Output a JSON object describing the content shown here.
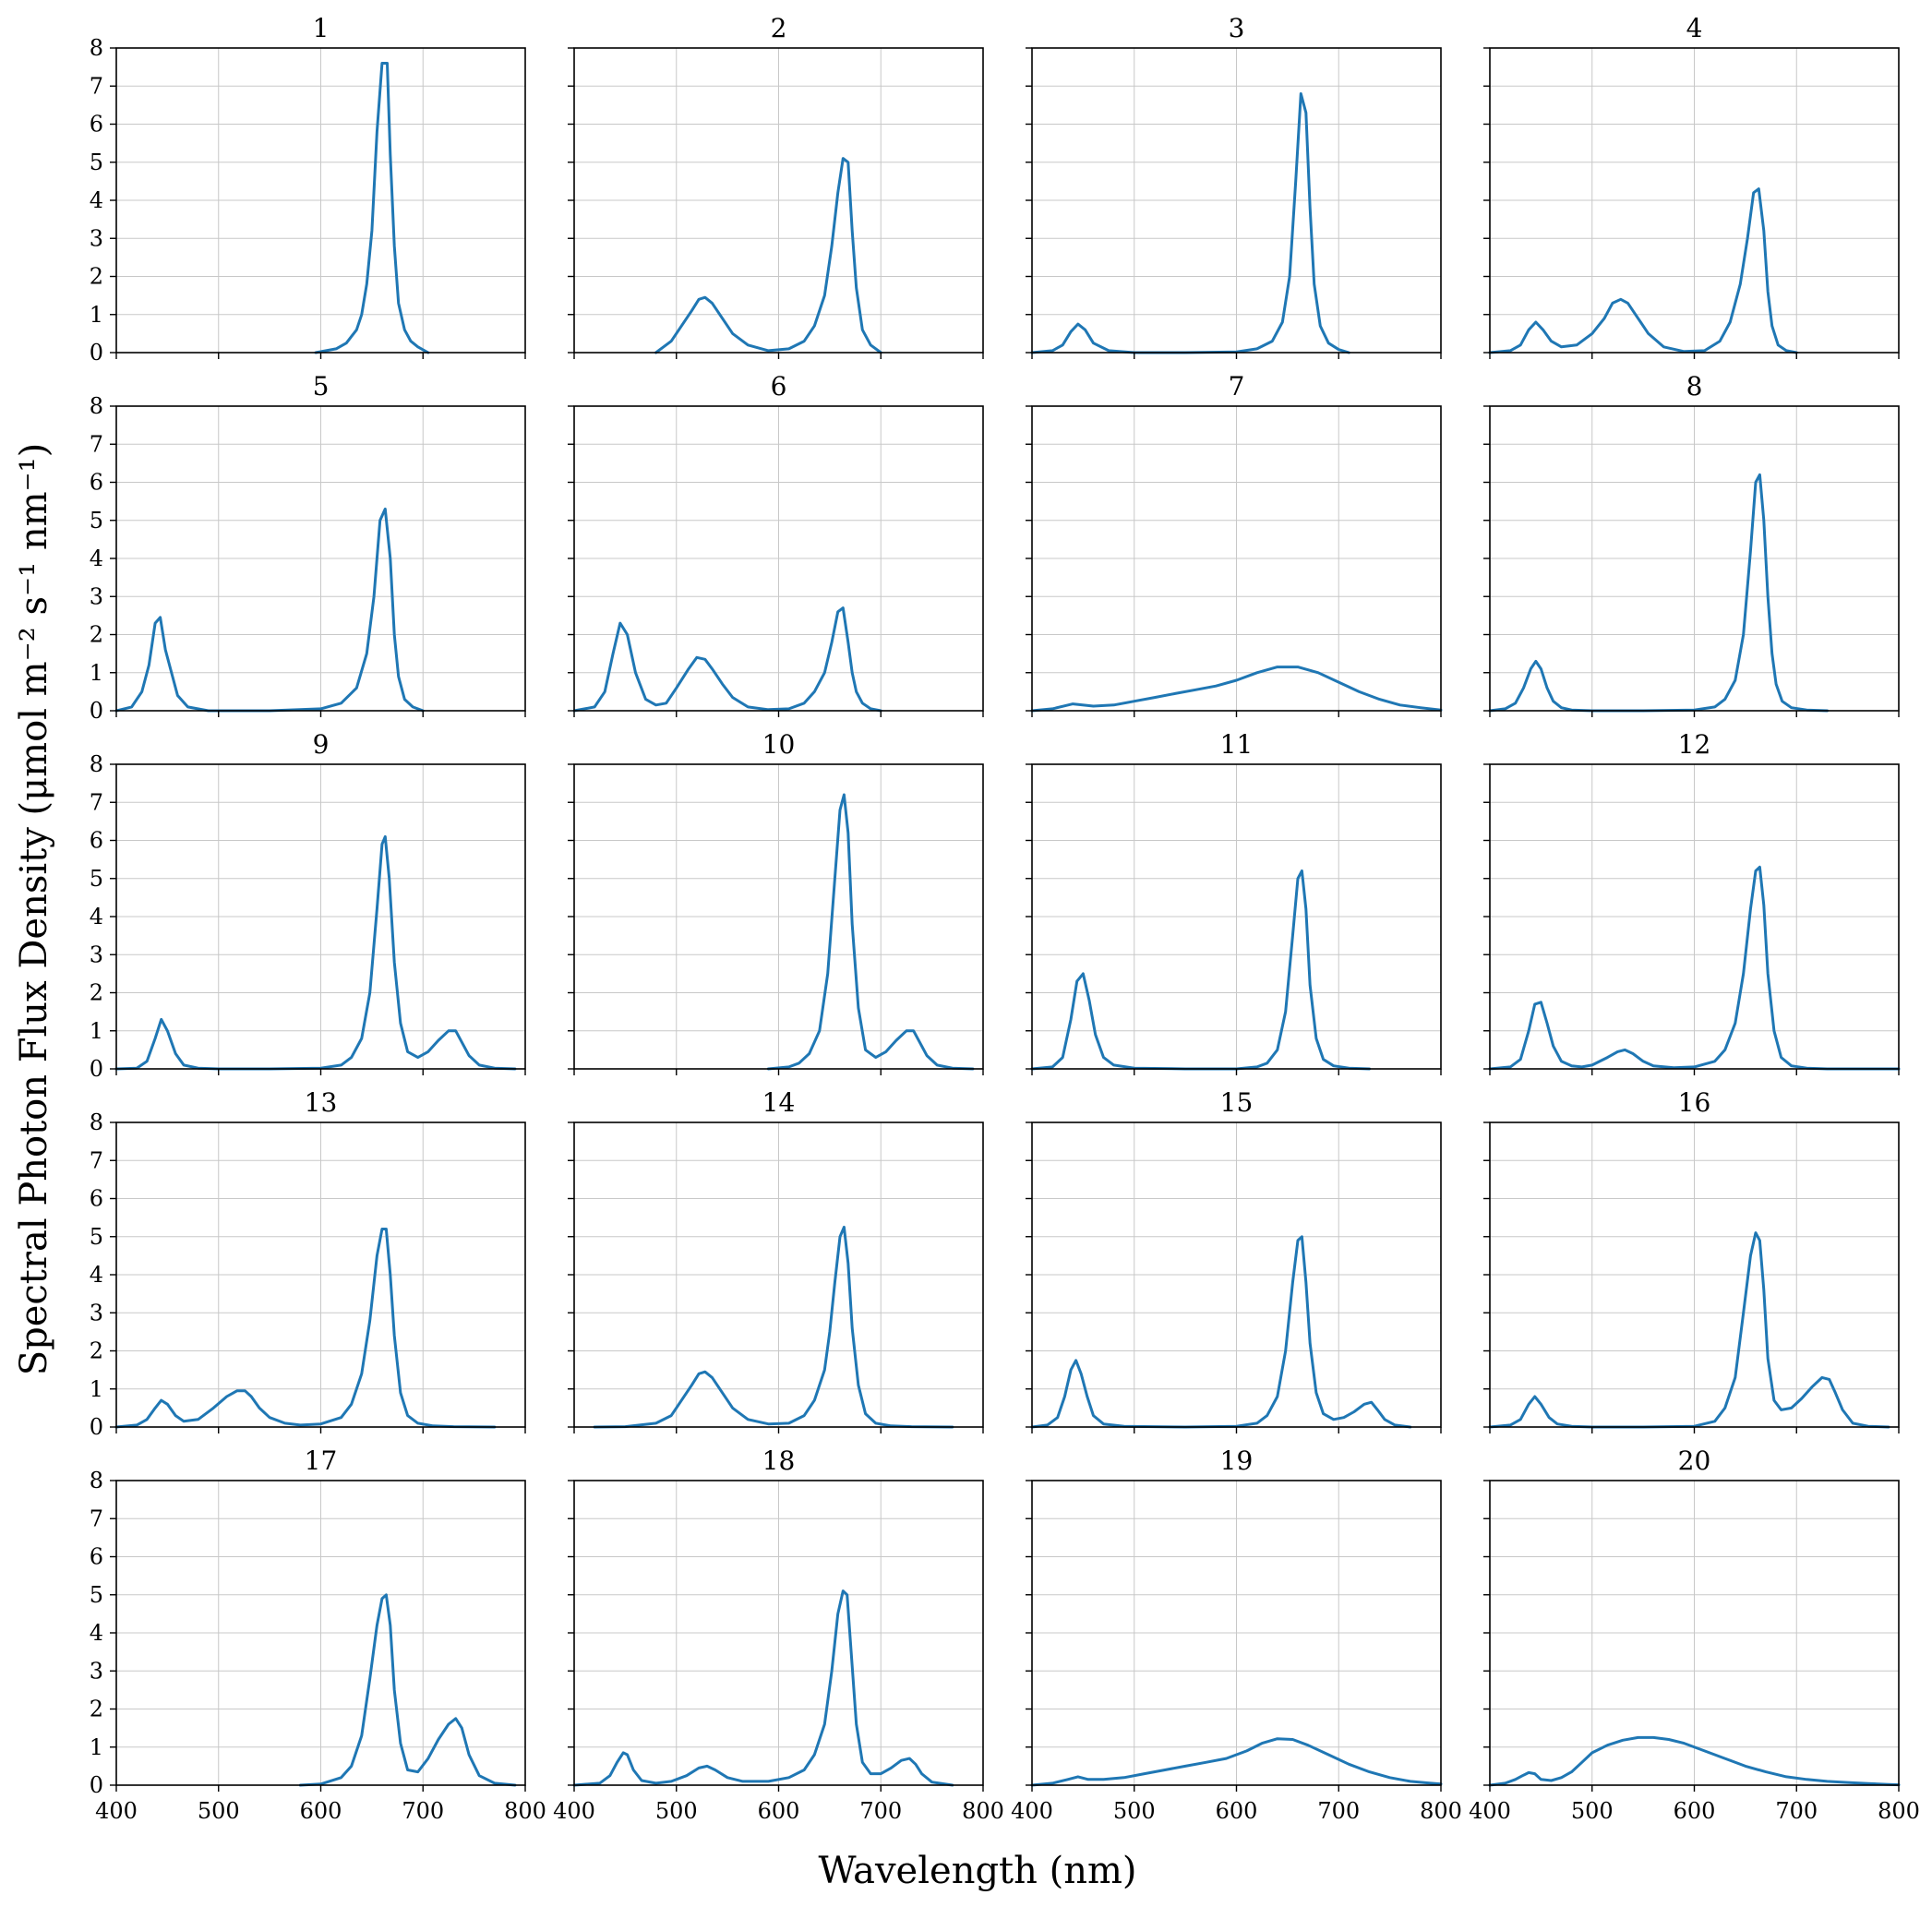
{
  "figure": {
    "xlabel": "Wavelength (nm)",
    "ylabel": "Spectral Photon Flux Density (μmol m⁻² s⁻¹ nm⁻¹)"
  },
  "style": {
    "line_color": "#1f77b4",
    "grid_color": "#c8c8c8",
    "frame_color": "#000000"
  },
  "chart_data": [
    {
      "type": "line",
      "title": "1",
      "xlim": [
        400,
        800
      ],
      "ylim": [
        0,
        8
      ],
      "x": [
        595,
        615,
        625,
        635,
        640,
        645,
        650,
        655,
        660,
        665,
        668,
        672,
        676,
        682,
        688,
        695,
        705
      ],
      "y": [
        0,
        0.1,
        0.25,
        0.6,
        1.0,
        1.8,
        3.2,
        5.8,
        7.6,
        7.6,
        5.2,
        2.8,
        1.3,
        0.6,
        0.3,
        0.15,
        0
      ]
    },
    {
      "type": "line",
      "title": "2",
      "xlim": [
        400,
        800
      ],
      "ylim": [
        0,
        8
      ],
      "x": [
        480,
        495,
        505,
        515,
        522,
        528,
        535,
        545,
        555,
        570,
        590,
        610,
        625,
        635,
        645,
        652,
        658,
        663,
        668,
        672,
        676,
        682,
        690,
        700
      ],
      "y": [
        0,
        0.3,
        0.7,
        1.1,
        1.4,
        1.45,
        1.3,
        0.9,
        0.5,
        0.2,
        0.05,
        0.1,
        0.3,
        0.7,
        1.5,
        2.8,
        4.2,
        5.1,
        5.0,
        3.2,
        1.7,
        0.6,
        0.2,
        0
      ]
    },
    {
      "type": "line",
      "title": "3",
      "xlim": [
        400,
        800
      ],
      "ylim": [
        0,
        8
      ],
      "x": [
        400,
        420,
        430,
        438,
        445,
        452,
        460,
        475,
        500,
        550,
        600,
        620,
        635,
        645,
        652,
        658,
        663,
        668,
        672,
        676,
        682,
        690,
        700,
        710
      ],
      "y": [
        0,
        0.05,
        0.2,
        0.55,
        0.75,
        0.6,
        0.25,
        0.05,
        0,
        0,
        0.02,
        0.1,
        0.3,
        0.8,
        2.0,
        4.5,
        6.8,
        6.3,
        3.8,
        1.8,
        0.7,
        0.25,
        0.08,
        0
      ]
    },
    {
      "type": "line",
      "title": "4",
      "xlim": [
        400,
        800
      ],
      "ylim": [
        0,
        8
      ],
      "x": [
        400,
        420,
        430,
        438,
        445,
        452,
        460,
        470,
        485,
        500,
        512,
        520,
        528,
        535,
        545,
        555,
        570,
        590,
        610,
        625,
        635,
        645,
        652,
        658,
        663,
        668,
        672,
        676,
        682,
        690,
        700
      ],
      "y": [
        0,
        0.05,
        0.2,
        0.6,
        0.8,
        0.6,
        0.3,
        0.15,
        0.2,
        0.5,
        0.9,
        1.3,
        1.4,
        1.3,
        0.9,
        0.5,
        0.15,
        0.03,
        0.05,
        0.3,
        0.8,
        1.8,
        3.0,
        4.2,
        4.3,
        3.2,
        1.6,
        0.7,
        0.2,
        0.05,
        0
      ]
    },
    {
      "type": "line",
      "title": "5",
      "xlim": [
        400,
        800
      ],
      "ylim": [
        0,
        8
      ],
      "x": [
        400,
        415,
        425,
        432,
        438,
        443,
        448,
        454,
        460,
        470,
        490,
        550,
        600,
        620,
        635,
        645,
        652,
        658,
        663,
        668,
        672,
        676,
        682,
        690,
        700
      ],
      "y": [
        0,
        0.1,
        0.5,
        1.2,
        2.3,
        2.45,
        1.6,
        1.0,
        0.4,
        0.1,
        0,
        0,
        0.05,
        0.2,
        0.6,
        1.5,
        3.0,
        5.0,
        5.3,
        4.0,
        2.0,
        0.9,
        0.3,
        0.1,
        0
      ]
    },
    {
      "type": "line",
      "title": "6",
      "xlim": [
        400,
        800
      ],
      "ylim": [
        0,
        8
      ],
      "x": [
        400,
        420,
        430,
        438,
        445,
        452,
        460,
        470,
        480,
        490,
        500,
        512,
        520,
        528,
        535,
        545,
        555,
        570,
        590,
        610,
        625,
        635,
        645,
        652,
        658,
        663,
        668,
        672,
        676,
        682,
        690,
        700
      ],
      "y": [
        0,
        0.1,
        0.5,
        1.5,
        2.3,
        2.0,
        1.0,
        0.3,
        0.15,
        0.2,
        0.6,
        1.1,
        1.4,
        1.35,
        1.1,
        0.7,
        0.35,
        0.1,
        0.03,
        0.05,
        0.2,
        0.5,
        1.0,
        1.8,
        2.6,
        2.7,
        1.8,
        1.0,
        0.5,
        0.2,
        0.05,
        0
      ]
    },
    {
      "type": "line",
      "title": "7",
      "xlim": [
        400,
        800
      ],
      "ylim": [
        0,
        8
      ],
      "x": [
        400,
        420,
        440,
        460,
        480,
        500,
        520,
        540,
        560,
        580,
        600,
        620,
        640,
        660,
        680,
        700,
        720,
        740,
        760,
        780,
        800
      ],
      "y": [
        0,
        0.05,
        0.18,
        0.12,
        0.15,
        0.25,
        0.35,
        0.45,
        0.55,
        0.65,
        0.8,
        1.0,
        1.15,
        1.15,
        1.0,
        0.75,
        0.5,
        0.3,
        0.15,
        0.08,
        0.02
      ]
    },
    {
      "type": "line",
      "title": "8",
      "xlim": [
        400,
        800
      ],
      "ylim": [
        0,
        8
      ],
      "x": [
        400,
        415,
        425,
        433,
        440,
        445,
        450,
        456,
        462,
        470,
        480,
        500,
        550,
        600,
        620,
        630,
        640,
        648,
        655,
        660,
        664,
        668,
        672,
        676,
        680,
        686,
        695,
        710,
        730
      ],
      "y": [
        0,
        0.05,
        0.2,
        0.6,
        1.1,
        1.3,
        1.1,
        0.6,
        0.25,
        0.08,
        0.02,
        0,
        0,
        0.02,
        0.1,
        0.3,
        0.8,
        2.0,
        4.2,
        6.0,
        6.2,
        5.0,
        3.0,
        1.5,
        0.7,
        0.25,
        0.08,
        0.02,
        0
      ]
    },
    {
      "type": "line",
      "title": "9",
      "xlim": [
        400,
        800
      ],
      "ylim": [
        0,
        8
      ],
      "x": [
        400,
        420,
        430,
        438,
        444,
        450,
        458,
        466,
        480,
        500,
        550,
        600,
        620,
        630,
        640,
        648,
        655,
        660,
        663,
        667,
        672,
        678,
        685,
        695,
        705,
        715,
        725,
        732,
        738,
        745,
        755,
        770,
        790
      ],
      "y": [
        0,
        0.02,
        0.2,
        0.8,
        1.3,
        1.0,
        0.4,
        0.1,
        0.02,
        0,
        0,
        0.02,
        0.1,
        0.3,
        0.8,
        2.0,
        4.2,
        5.9,
        6.1,
        5.0,
        2.8,
        1.2,
        0.45,
        0.3,
        0.45,
        0.75,
        1.0,
        1.0,
        0.7,
        0.35,
        0.1,
        0.02,
        0
      ]
    },
    {
      "type": "line",
      "title": "10",
      "xlim": [
        400,
        800
      ],
      "ylim": [
        0,
        8
      ],
      "x": [
        590,
        610,
        620,
        630,
        640,
        648,
        655,
        660,
        664,
        668,
        672,
        678,
        685,
        695,
        705,
        715,
        725,
        732,
        738,
        745,
        755,
        770,
        790
      ],
      "y": [
        0,
        0.05,
        0.15,
        0.4,
        1.0,
        2.5,
        5.0,
        6.8,
        7.2,
        6.2,
        3.8,
        1.6,
        0.5,
        0.3,
        0.45,
        0.75,
        1.0,
        1.0,
        0.7,
        0.35,
        0.1,
        0.02,
        0
      ]
    },
    {
      "type": "line",
      "title": "11",
      "xlim": [
        400,
        800
      ],
      "ylim": [
        0,
        8
      ],
      "x": [
        400,
        420,
        430,
        438,
        444,
        450,
        456,
        462,
        470,
        480,
        500,
        550,
        600,
        620,
        630,
        640,
        648,
        655,
        660,
        664,
        668,
        672,
        678,
        685,
        695,
        710,
        730
      ],
      "y": [
        0,
        0.05,
        0.3,
        1.3,
        2.3,
        2.5,
        1.8,
        0.9,
        0.3,
        0.1,
        0.02,
        0,
        0,
        0.05,
        0.15,
        0.5,
        1.5,
        3.5,
        5.0,
        5.2,
        4.2,
        2.2,
        0.8,
        0.25,
        0.08,
        0.02,
        0
      ]
    },
    {
      "type": "line",
      "title": "12",
      "xlim": [
        400,
        800
      ],
      "ylim": [
        0,
        8
      ],
      "x": [
        400,
        420,
        430,
        438,
        444,
        450,
        456,
        462,
        470,
        480,
        490,
        500,
        515,
        525,
        532,
        540,
        550,
        560,
        580,
        600,
        620,
        630,
        640,
        648,
        655,
        660,
        664,
        668,
        672,
        678,
        685,
        695,
        710,
        730,
        800
      ],
      "y": [
        0,
        0.05,
        0.25,
        1.0,
        1.7,
        1.75,
        1.2,
        0.6,
        0.2,
        0.08,
        0.05,
        0.1,
        0.3,
        0.45,
        0.5,
        0.4,
        0.2,
        0.08,
        0.03,
        0.05,
        0.2,
        0.5,
        1.2,
        2.5,
        4.2,
        5.2,
        5.3,
        4.3,
        2.5,
        1.0,
        0.3,
        0.08,
        0.02,
        0,
        0
      ]
    },
    {
      "type": "line",
      "title": "13",
      "xlim": [
        400,
        800
      ],
      "ylim": [
        0,
        8
      ],
      "x": [
        400,
        420,
        430,
        438,
        444,
        450,
        458,
        466,
        480,
        495,
        508,
        518,
        526,
        532,
        540,
        550,
        565,
        580,
        600,
        620,
        630,
        640,
        648,
        655,
        660,
        664,
        668,
        672,
        678,
        685,
        695,
        710,
        730,
        770
      ],
      "y": [
        0,
        0.05,
        0.2,
        0.5,
        0.7,
        0.6,
        0.3,
        0.15,
        0.2,
        0.5,
        0.8,
        0.95,
        0.95,
        0.8,
        0.5,
        0.25,
        0.1,
        0.05,
        0.08,
        0.25,
        0.6,
        1.4,
        2.8,
        4.5,
        5.2,
        5.2,
        4.0,
        2.4,
        0.9,
        0.3,
        0.1,
        0.03,
        0.01,
        0
      ]
    },
    {
      "type": "line",
      "title": "14",
      "xlim": [
        400,
        800
      ],
      "ylim": [
        0,
        8
      ],
      "x": [
        420,
        450,
        480,
        495,
        505,
        515,
        522,
        528,
        535,
        545,
        555,
        570,
        590,
        610,
        625,
        635,
        645,
        650,
        655,
        660,
        664,
        668,
        672,
        678,
        685,
        695,
        710,
        730,
        770
      ],
      "y": [
        0,
        0.01,
        0.1,
        0.3,
        0.7,
        1.1,
        1.4,
        1.45,
        1.3,
        0.9,
        0.5,
        0.2,
        0.08,
        0.1,
        0.3,
        0.7,
        1.5,
        2.5,
        3.8,
        5.0,
        5.25,
        4.3,
        2.6,
        1.1,
        0.35,
        0.1,
        0.03,
        0.01,
        0
      ]
    },
    {
      "type": "line",
      "title": "15",
      "xlim": [
        400,
        800
      ],
      "ylim": [
        0,
        8
      ],
      "x": [
        400,
        415,
        425,
        432,
        438,
        443,
        448,
        454,
        460,
        470,
        490,
        550,
        600,
        620,
        630,
        640,
        648,
        655,
        660,
        664,
        668,
        672,
        678,
        685,
        695,
        705,
        715,
        725,
        732,
        738,
        745,
        755,
        770
      ],
      "y": [
        0,
        0.05,
        0.25,
        0.8,
        1.5,
        1.75,
        1.4,
        0.8,
        0.3,
        0.08,
        0.02,
        0,
        0.02,
        0.1,
        0.3,
        0.8,
        2.0,
        3.8,
        4.9,
        5.0,
        3.8,
        2.2,
        0.9,
        0.35,
        0.2,
        0.25,
        0.4,
        0.6,
        0.65,
        0.45,
        0.2,
        0.05,
        0
      ]
    },
    {
      "type": "line",
      "title": "16",
      "xlim": [
        400,
        800
      ],
      "ylim": [
        0,
        8
      ],
      "x": [
        400,
        420,
        430,
        438,
        444,
        450,
        458,
        466,
        480,
        500,
        550,
        600,
        620,
        630,
        640,
        648,
        655,
        660,
        664,
        668,
        672,
        678,
        685,
        695,
        705,
        715,
        725,
        732,
        738,
        745,
        755,
        770,
        790
      ],
      "y": [
        0,
        0.05,
        0.2,
        0.6,
        0.8,
        0.6,
        0.25,
        0.08,
        0.02,
        0,
        0,
        0.02,
        0.15,
        0.5,
        1.3,
        3.0,
        4.5,
        5.1,
        4.9,
        3.6,
        1.8,
        0.7,
        0.45,
        0.5,
        0.75,
        1.05,
        1.3,
        1.25,
        0.9,
        0.45,
        0.1,
        0.02,
        0
      ]
    },
    {
      "type": "line",
      "title": "17",
      "xlim": [
        400,
        800
      ],
      "ylim": [
        0,
        8
      ],
      "x": [
        580,
        600,
        620,
        630,
        640,
        648,
        655,
        660,
        664,
        668,
        672,
        678,
        685,
        695,
        705,
        715,
        725,
        732,
        738,
        745,
        755,
        770,
        790
      ],
      "y": [
        0,
        0.03,
        0.2,
        0.5,
        1.3,
        2.8,
        4.2,
        4.9,
        5.0,
        4.2,
        2.5,
        1.1,
        0.4,
        0.35,
        0.7,
        1.2,
        1.6,
        1.75,
        1.5,
        0.8,
        0.25,
        0.05,
        0
      ]
    },
    {
      "type": "line",
      "title": "18",
      "xlim": [
        400,
        800
      ],
      "ylim": [
        0,
        8
      ],
      "x": [
        400,
        425,
        435,
        442,
        448,
        452,
        458,
        466,
        480,
        495,
        510,
        522,
        530,
        538,
        550,
        565,
        590,
        610,
        625,
        635,
        645,
        652,
        658,
        663,
        667,
        671,
        676,
        682,
        690,
        700,
        710,
        720,
        728,
        734,
        740,
        750,
        770
      ],
      "y": [
        0,
        0.05,
        0.25,
        0.6,
        0.85,
        0.8,
        0.4,
        0.12,
        0.05,
        0.1,
        0.25,
        0.45,
        0.5,
        0.4,
        0.2,
        0.1,
        0.1,
        0.2,
        0.4,
        0.8,
        1.6,
        3.0,
        4.5,
        5.1,
        5.0,
        3.5,
        1.6,
        0.6,
        0.3,
        0.3,
        0.45,
        0.65,
        0.7,
        0.55,
        0.3,
        0.08,
        0
      ]
    },
    {
      "type": "line",
      "title": "19",
      "xlim": [
        400,
        800
      ],
      "ylim": [
        0,
        8
      ],
      "x": [
        400,
        420,
        435,
        445,
        455,
        470,
        490,
        510,
        530,
        550,
        570,
        590,
        610,
        625,
        640,
        655,
        670,
        690,
        710,
        730,
        750,
        770,
        790,
        800
      ],
      "y": [
        0,
        0.05,
        0.15,
        0.22,
        0.15,
        0.15,
        0.2,
        0.3,
        0.4,
        0.5,
        0.6,
        0.7,
        0.9,
        1.1,
        1.22,
        1.2,
        1.05,
        0.8,
        0.55,
        0.35,
        0.2,
        0.1,
        0.05,
        0.03
      ]
    },
    {
      "type": "line",
      "title": "20",
      "xlim": [
        400,
        800
      ],
      "ylim": [
        0,
        8
      ],
      "x": [
        400,
        415,
        425,
        432,
        438,
        444,
        450,
        460,
        470,
        480,
        490,
        500,
        515,
        530,
        545,
        560,
        575,
        590,
        610,
        630,
        650,
        670,
        690,
        710,
        730,
        750,
        770,
        790,
        800
      ],
      "y": [
        0,
        0.05,
        0.15,
        0.25,
        0.33,
        0.3,
        0.15,
        0.12,
        0.2,
        0.35,
        0.6,
        0.85,
        1.05,
        1.18,
        1.25,
        1.25,
        1.2,
        1.1,
        0.9,
        0.7,
        0.5,
        0.35,
        0.22,
        0.15,
        0.1,
        0.07,
        0.04,
        0.02,
        0.01
      ]
    }
  ]
}
